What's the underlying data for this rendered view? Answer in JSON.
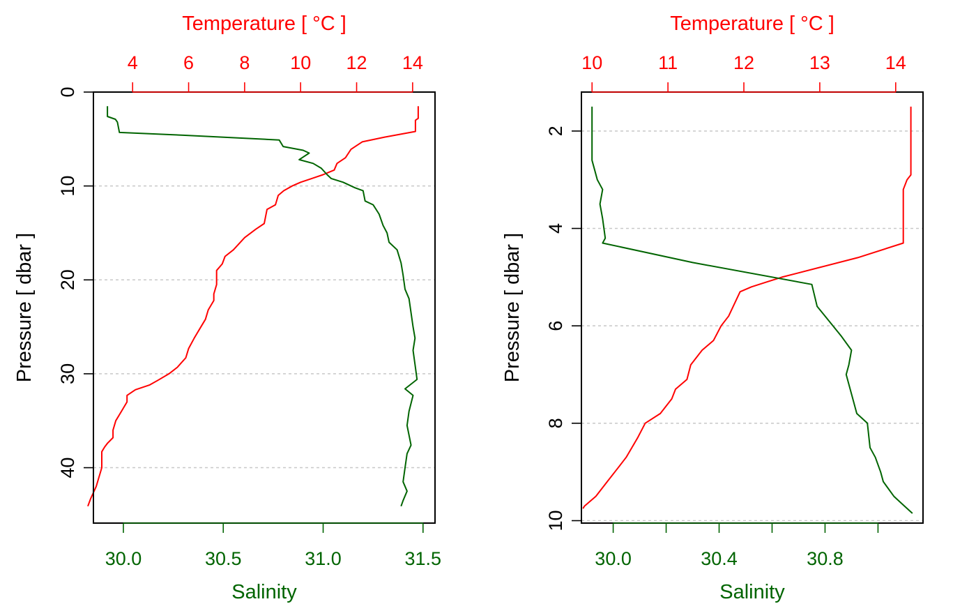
{
  "colors": {
    "temperature": "#ff0000",
    "salinity": "#006400",
    "pressure": "#000000",
    "grid": "#c8c8c8"
  },
  "chart_data": [
    {
      "type": "line",
      "panel": "left",
      "temperature_axis": {
        "label": "Temperature [ °C ]",
        "position": "top",
        "range": [
          2.6,
          14.8
        ],
        "ticks": [
          4,
          6,
          8,
          10,
          12,
          14
        ]
      },
      "salinity_axis": {
        "label": "Salinity",
        "position": "bottom",
        "range": [
          29.85,
          31.56
        ],
        "ticks": [
          30.0,
          30.5,
          31.0,
          31.5
        ],
        "tick_labels": [
          "30.0",
          "30.5",
          "31.0",
          "31.5"
        ]
      },
      "pressure_axis": {
        "label": "Pressure [ dbar ]",
        "position": "left",
        "range": [
          0,
          45.9
        ],
        "reversed": true,
        "ticks": [
          0,
          10,
          20,
          30,
          40
        ]
      },
      "grid": true,
      "series": [
        {
          "variable": "temperature",
          "points": [
            [
              14.2,
              1.5
            ],
            [
              14.2,
              2.8
            ],
            [
              14.1,
              3.0
            ],
            [
              14.1,
              4.2
            ],
            [
              13.0,
              4.8
            ],
            [
              12.2,
              5.3
            ],
            [
              11.8,
              6.1
            ],
            [
              11.6,
              7.0
            ],
            [
              11.3,
              7.6
            ],
            [
              11.2,
              8.3
            ],
            [
              10.8,
              8.8
            ],
            [
              10.4,
              9.2
            ],
            [
              10.0,
              9.6
            ],
            [
              9.7,
              10.0
            ],
            [
              9.4,
              10.5
            ],
            [
              9.2,
              11.0
            ],
            [
              9.1,
              12.0
            ],
            [
              8.8,
              12.5
            ],
            [
              8.7,
              14.0
            ],
            [
              8.4,
              14.6
            ],
            [
              8.0,
              15.5
            ],
            [
              7.6,
              16.8
            ],
            [
              7.3,
              17.5
            ],
            [
              7.2,
              18.3
            ],
            [
              7.0,
              19.0
            ],
            [
              7.0,
              20.5
            ],
            [
              6.9,
              21.5
            ],
            [
              6.9,
              22.2
            ],
            [
              6.7,
              23.2
            ],
            [
              6.6,
              24.2
            ],
            [
              6.4,
              25.2
            ],
            [
              6.2,
              26.2
            ],
            [
              6.0,
              27.3
            ],
            [
              5.9,
              28.3
            ],
            [
              5.6,
              29.3
            ],
            [
              5.3,
              30.0
            ],
            [
              4.9,
              30.7
            ],
            [
              4.6,
              31.2
            ],
            [
              4.1,
              31.7
            ],
            [
              3.8,
              32.3
            ],
            [
              3.8,
              33.0
            ],
            [
              3.6,
              34.0
            ],
            [
              3.4,
              35.0
            ],
            [
              3.3,
              36.0
            ],
            [
              3.3,
              36.8
            ],
            [
              3.1,
              37.4
            ],
            [
              3.0,
              37.8
            ],
            [
              2.9,
              38.3
            ],
            [
              2.9,
              40.0
            ],
            [
              2.8,
              41.0
            ],
            [
              2.7,
              42.0
            ],
            [
              2.5,
              43.3
            ],
            [
              2.4,
              44.1
            ]
          ]
        },
        {
          "variable": "salinity",
          "points": [
            [
              29.92,
              1.5
            ],
            [
              29.92,
              2.6
            ],
            [
              29.96,
              2.9
            ],
            [
              29.97,
              3.2
            ],
            [
              29.98,
              4.3
            ],
            [
              30.3,
              4.6
            ],
            [
              30.78,
              5.1
            ],
            [
              30.8,
              5.8
            ],
            [
              30.9,
              6.2
            ],
            [
              30.93,
              6.5
            ],
            [
              30.88,
              7.2
            ],
            [
              30.95,
              7.6
            ],
            [
              30.99,
              8.1
            ],
            [
              31.02,
              8.8
            ],
            [
              31.04,
              9.2
            ],
            [
              31.1,
              9.6
            ],
            [
              31.16,
              10.2
            ],
            [
              31.2,
              10.5
            ],
            [
              31.21,
              11.6
            ],
            [
              31.25,
              12.0
            ],
            [
              31.28,
              13.0
            ],
            [
              31.3,
              14.2
            ],
            [
              31.32,
              15.0
            ],
            [
              31.33,
              16.0
            ],
            [
              31.37,
              16.8
            ],
            [
              31.39,
              18.2
            ],
            [
              31.4,
              19.5
            ],
            [
              31.41,
              21.0
            ],
            [
              31.43,
              22.0
            ],
            [
              31.44,
              23.5
            ],
            [
              31.45,
              25.0
            ],
            [
              31.46,
              26.2
            ],
            [
              31.45,
              27.5
            ],
            [
              31.46,
              29.0
            ],
            [
              31.47,
              30.6
            ],
            [
              31.41,
              31.6
            ],
            [
              31.45,
              32.3
            ],
            [
              31.43,
              34.0
            ],
            [
              31.42,
              35.5
            ],
            [
              31.44,
              37.6
            ],
            [
              31.42,
              38.5
            ],
            [
              31.41,
              40.0
            ],
            [
              31.4,
              41.5
            ],
            [
              31.42,
              42.5
            ],
            [
              31.4,
              43.5
            ],
            [
              31.39,
              44.1
            ]
          ]
        }
      ]
    },
    {
      "type": "line",
      "panel": "right",
      "temperature_axis": {
        "label": "Temperature [ °C ]",
        "position": "top",
        "range": [
          9.86,
          14.36
        ],
        "ticks": [
          10,
          11,
          12,
          13,
          14
        ]
      },
      "salinity_axis": {
        "label": "Salinity",
        "position": "bottom",
        "range": [
          29.88,
          31.17
        ],
        "ticks": [
          30.0,
          30.2,
          30.4,
          30.6,
          30.8,
          31.0
        ],
        "tick_labels": [
          "30.0",
          "",
          "30.4",
          "",
          "30.8",
          ""
        ]
      },
      "pressure_axis": {
        "label": "Pressure [ dbar ]",
        "position": "left",
        "range": [
          1.2,
          10.05
        ],
        "reversed": true,
        "ticks": [
          2,
          4,
          6,
          8,
          10
        ]
      },
      "grid": true,
      "series": [
        {
          "variable": "temperature",
          "points": [
            [
              14.2,
              1.5
            ],
            [
              14.2,
              2.9
            ],
            [
              14.15,
              3.0
            ],
            [
              14.1,
              3.2
            ],
            [
              14.1,
              4.3
            ],
            [
              13.5,
              4.6
            ],
            [
              13.0,
              4.8
            ],
            [
              12.5,
              5.0
            ],
            [
              12.3,
              5.1
            ],
            [
              12.1,
              5.2
            ],
            [
              11.95,
              5.3
            ],
            [
              11.8,
              5.8
            ],
            [
              11.7,
              6.0
            ],
            [
              11.6,
              6.3
            ],
            [
              11.45,
              6.5
            ],
            [
              11.3,
              6.8
            ],
            [
              11.25,
              7.1
            ],
            [
              11.1,
              7.3
            ],
            [
              11.05,
              7.5
            ],
            [
              10.9,
              7.8
            ],
            [
              10.7,
              8.0
            ],
            [
              10.6,
              8.3
            ],
            [
              10.45,
              8.7
            ],
            [
              10.35,
              8.9
            ],
            [
              10.2,
              9.2
            ],
            [
              10.05,
              9.5
            ],
            [
              9.9,
              9.7
            ],
            [
              9.88,
              9.75
            ]
          ]
        },
        {
          "variable": "salinity",
          "points": [
            [
              29.92,
              1.5
            ],
            [
              29.92,
              2.6
            ],
            [
              29.93,
              2.8
            ],
            [
              29.94,
              3.0
            ],
            [
              29.96,
              3.2
            ],
            [
              29.95,
              3.5
            ],
            [
              29.96,
              3.8
            ],
            [
              29.97,
              4.2
            ],
            [
              29.96,
              4.3
            ],
            [
              30.3,
              4.7
            ],
            [
              30.75,
              5.15
            ],
            [
              30.77,
              5.6
            ],
            [
              30.8,
              5.8
            ],
            [
              30.86,
              6.2
            ],
            [
              30.9,
              6.5
            ],
            [
              30.89,
              6.8
            ],
            [
              30.88,
              7.0
            ],
            [
              30.9,
              7.4
            ],
            [
              30.92,
              7.8
            ],
            [
              30.96,
              8.0
            ],
            [
              30.97,
              8.5
            ],
            [
              30.99,
              8.7
            ],
            [
              31.01,
              9.0
            ],
            [
              31.02,
              9.2
            ],
            [
              31.06,
              9.5
            ],
            [
              31.1,
              9.7
            ],
            [
              31.13,
              9.85
            ]
          ]
        }
      ]
    }
  ]
}
